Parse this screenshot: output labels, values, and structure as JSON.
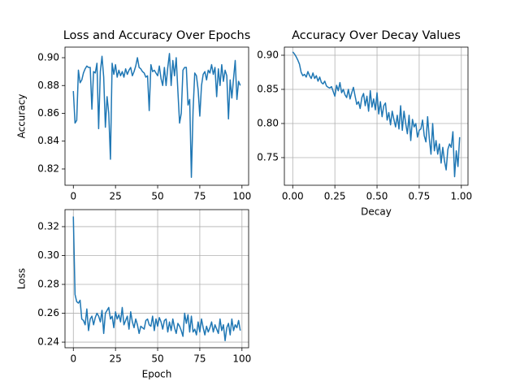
{
  "chart_data": [
    {
      "type": "line",
      "title": "Loss and Accuracy Over Epochs",
      "ylabel": "Accuracy",
      "grid": false,
      "color": "#1f77b4",
      "x": [
        0,
        1,
        2,
        3,
        4,
        5,
        6,
        7,
        8,
        9,
        10,
        11,
        12,
        13,
        14,
        15,
        16,
        17,
        18,
        19,
        20,
        21,
        22,
        23,
        24,
        25,
        26,
        27,
        28,
        29,
        30,
        31,
        32,
        33,
        34,
        35,
        36,
        37,
        38,
        39,
        40,
        41,
        42,
        43,
        44,
        45,
        46,
        47,
        48,
        49,
        50,
        51,
        52,
        53,
        54,
        55,
        56,
        57,
        58,
        59,
        60,
        61,
        62,
        63,
        64,
        65,
        66,
        67,
        68,
        69,
        70,
        71,
        72,
        73,
        74,
        75,
        76,
        77,
        78,
        79,
        80,
        81,
        82,
        83,
        84,
        85,
        86,
        87,
        88,
        89,
        90,
        91,
        92,
        93,
        94,
        95,
        96,
        97,
        98,
        99
      ],
      "values": [
        0.876,
        0.853,
        0.855,
        0.891,
        0.882,
        0.884,
        0.889,
        0.892,
        0.894,
        0.893,
        0.893,
        0.863,
        0.89,
        0.889,
        0.896,
        0.849,
        0.89,
        0.901,
        0.886,
        0.85,
        0.872,
        0.86,
        0.827,
        0.896,
        0.888,
        0.895,
        0.886,
        0.891,
        0.887,
        0.89,
        0.886,
        0.892,
        0.888,
        0.891,
        0.893,
        0.887,
        0.89,
        0.894,
        0.9,
        0.893,
        0.892,
        0.89,
        0.889,
        0.886,
        0.887,
        0.862,
        0.895,
        0.89,
        0.891,
        0.889,
        0.887,
        0.894,
        0.885,
        0.88,
        0.893,
        0.88,
        0.893,
        0.903,
        0.88,
        0.898,
        0.887,
        0.9,
        0.876,
        0.853,
        0.86,
        0.891,
        0.893,
        0.893,
        0.866,
        0.87,
        0.814,
        0.862,
        0.889,
        0.887,
        0.877,
        0.858,
        0.88,
        0.888,
        0.89,
        0.884,
        0.891,
        0.889,
        0.895,
        0.888,
        0.893,
        0.872,
        0.892,
        0.88,
        0.895,
        0.883,
        0.891,
        0.887,
        0.856,
        0.884,
        0.871,
        0.885,
        0.898,
        0.87,
        0.883,
        0.88
      ],
      "xlim": [
        -4.95,
        103.95
      ],
      "xticks": [
        0,
        25,
        50,
        75,
        100
      ],
      "ylim": [
        0.8083,
        0.9076
      ],
      "yticks": [
        0.82,
        0.84,
        0.86,
        0.88,
        {
          "value": 0.9,
          "label": "0.90"
        }
      ]
    },
    {
      "type": "line",
      "title": "Accuracy Over Decay Values",
      "xlabel": "Decay",
      "grid": true,
      "color": "#1f77b4",
      "x": [
        0,
        0.01,
        0.02,
        0.03,
        0.04,
        0.05,
        0.06,
        0.07,
        0.08,
        0.09,
        0.1,
        0.11,
        0.12,
        0.13,
        0.14,
        0.15,
        0.16,
        0.17,
        0.18,
        0.19,
        0.2,
        0.21,
        0.22,
        0.23,
        0.24,
        0.25,
        0.26,
        0.27,
        0.28,
        0.29,
        0.3,
        0.31,
        0.32,
        0.33,
        0.34,
        0.35,
        0.36,
        0.37,
        0.38,
        0.39,
        0.4,
        0.41,
        0.42,
        0.43,
        0.44,
        0.45,
        0.46,
        0.47,
        0.48,
        0.49,
        0.5,
        0.51,
        0.52,
        0.53,
        0.54,
        0.55,
        0.56,
        0.57,
        0.58,
        0.59,
        0.6,
        0.61,
        0.62,
        0.63,
        0.64,
        0.65,
        0.66,
        0.67,
        0.68,
        0.69,
        0.7,
        0.71,
        0.72,
        0.73,
        0.74,
        0.75,
        0.76,
        0.77,
        0.78,
        0.79,
        0.8,
        0.81,
        0.82,
        0.83,
        0.84,
        0.85,
        0.86,
        0.87,
        0.88,
        0.89,
        0.9,
        0.91,
        0.92,
        0.93,
        0.94,
        0.95,
        0.96,
        0.97,
        0.98,
        0.99
      ],
      "values": [
        0.905,
        0.902,
        0.898,
        0.893,
        0.887,
        0.875,
        0.87,
        0.872,
        0.868,
        0.876,
        0.87,
        0.866,
        0.874,
        0.866,
        0.87,
        0.862,
        0.868,
        0.86,
        0.858,
        0.862,
        0.855,
        0.853,
        0.852,
        0.854,
        0.847,
        0.84,
        0.856,
        0.848,
        0.86,
        0.845,
        0.85,
        0.842,
        0.838,
        0.85,
        0.836,
        0.845,
        0.853,
        0.84,
        0.828,
        0.832,
        0.822,
        0.838,
        0.844,
        0.826,
        0.84,
        0.818,
        0.848,
        0.824,
        0.836,
        0.82,
        0.845,
        0.814,
        0.832,
        0.81,
        0.826,
        0.83,
        0.805,
        0.816,
        0.798,
        0.818,
        0.806,
        0.795,
        0.812,
        0.792,
        0.826,
        0.79,
        0.818,
        0.8,
        0.785,
        0.812,
        0.775,
        0.806,
        0.795,
        0.8,
        0.78,
        0.79,
        0.792,
        0.805,
        0.782,
        0.773,
        0.81,
        0.778,
        0.755,
        0.8,
        0.76,
        0.775,
        0.755,
        0.77,
        0.742,
        0.765,
        0.745,
        0.732,
        0.762,
        0.77,
        0.765,
        0.788,
        0.722,
        0.76,
        0.737,
        0.78
      ],
      "xlim": [
        -0.0495,
        1.0395
      ],
      "xticks": [
        {
          "value": 0,
          "label": "0.00"
        },
        0.25,
        {
          "value": 0.5,
          "label": "0.50"
        },
        0.75,
        {
          "value": 1,
          "label": "1.00"
        }
      ],
      "ylim": [
        0.7095,
        0.9119
      ],
      "yticks": [
        0.75,
        {
          "value": 0.8,
          "label": "0.80"
        },
        0.85,
        {
          "value": 0.9,
          "label": "0.90"
        }
      ]
    },
    {
      "type": "line",
      "xlabel": "Epoch",
      "ylabel": "Loss",
      "grid": true,
      "color": "#1f77b4",
      "x": [
        0,
        1,
        2,
        3,
        4,
        5,
        6,
        7,
        8,
        9,
        10,
        11,
        12,
        13,
        14,
        15,
        16,
        17,
        18,
        19,
        20,
        21,
        22,
        23,
        24,
        25,
        26,
        27,
        28,
        29,
        30,
        31,
        32,
        33,
        34,
        35,
        36,
        37,
        38,
        39,
        40,
        41,
        42,
        43,
        44,
        45,
        46,
        47,
        48,
        49,
        50,
        51,
        52,
        53,
        54,
        55,
        56,
        57,
        58,
        59,
        60,
        61,
        62,
        63,
        64,
        65,
        66,
        67,
        68,
        69,
        70,
        71,
        72,
        73,
        74,
        75,
        76,
        77,
        78,
        79,
        80,
        81,
        82,
        83,
        84,
        85,
        86,
        87,
        88,
        89,
        90,
        91,
        92,
        93,
        94,
        95,
        96,
        97,
        98,
        99
      ],
      "values": [
        0.327,
        0.273,
        0.268,
        0.267,
        0.269,
        0.256,
        0.255,
        0.252,
        0.263,
        0.248,
        0.256,
        0.258,
        0.252,
        0.257,
        0.26,
        0.258,
        0.254,
        0.262,
        0.246,
        0.26,
        0.262,
        0.264,
        0.256,
        0.258,
        0.25,
        0.261,
        0.256,
        0.259,
        0.254,
        0.264,
        0.252,
        0.255,
        0.258,
        0.249,
        0.261,
        0.254,
        0.25,
        0.256,
        0.252,
        0.246,
        0.251,
        0.25,
        0.249,
        0.255,
        0.256,
        0.252,
        0.251,
        0.258,
        0.248,
        0.256,
        0.251,
        0.257,
        0.254,
        0.249,
        0.255,
        0.256,
        0.247,
        0.254,
        0.248,
        0.256,
        0.25,
        0.246,
        0.253,
        0.251,
        0.248,
        0.244,
        0.26,
        0.253,
        0.259,
        0.247,
        0.258,
        0.247,
        0.249,
        0.245,
        0.254,
        0.247,
        0.256,
        0.25,
        0.245,
        0.251,
        0.247,
        0.25,
        0.254,
        0.247,
        0.252,
        0.249,
        0.246,
        0.256,
        0.248,
        0.252,
        0.241,
        0.25,
        0.253,
        0.245,
        0.256,
        0.248,
        0.252,
        0.25,
        0.255,
        0.248
      ],
      "xlim": [
        -4.95,
        103.95
      ],
      "xticks": [
        0,
        25,
        50,
        75,
        100
      ],
      "ylim": [
        0.2361,
        0.3318
      ],
      "yticks": [
        0.24,
        0.26,
        0.28,
        {
          "value": 0.3,
          "label": "0.30"
        },
        0.32
      ]
    }
  ]
}
